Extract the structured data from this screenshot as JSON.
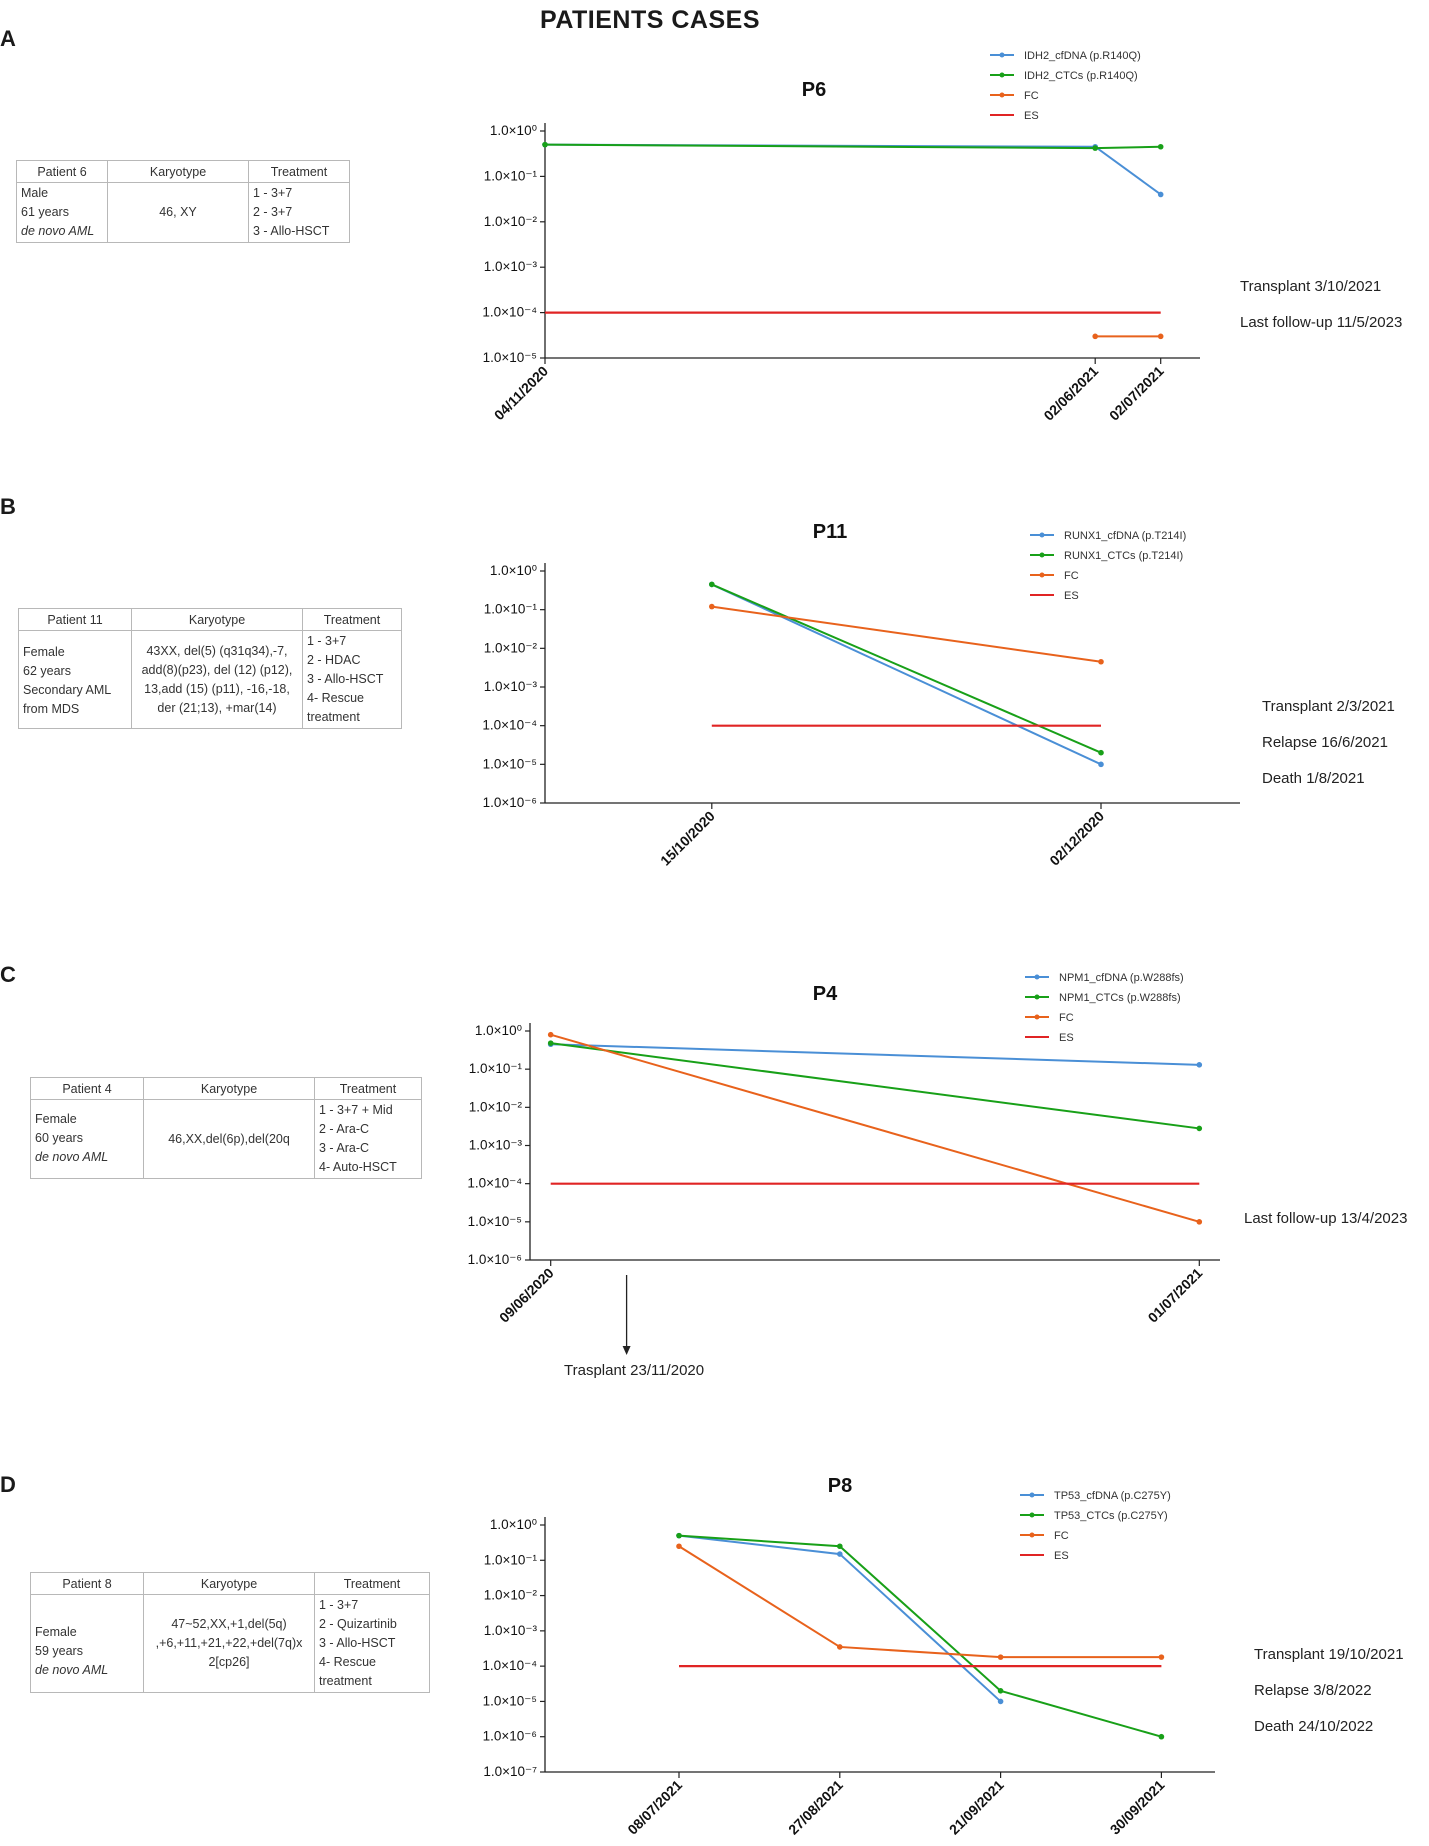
{
  "page_title": "PATIENTS CASES",
  "panels": [
    {
      "letter": "A",
      "patient_table": {
        "headers": [
          "Patient 6",
          "Karyotype",
          "Treatment"
        ],
        "patient_info": [
          "Male",
          "61 years",
          "de novo AML"
        ],
        "karyotype": "46, XY",
        "treatment": [
          "1 - 3+7",
          "2 - 3+7",
          "3 - Allo-HSCT"
        ]
      },
      "events": [
        "Transplant 3/10/2021",
        "Last follow-up 11/5/2023"
      ],
      "arrow_note": ""
    },
    {
      "letter": "B",
      "patient_table": {
        "headers": [
          "Patient 11",
          "Karyotype",
          "Treatment"
        ],
        "patient_info": [
          "Female",
          "62 years",
          "Secondary AML",
          "from MDS"
        ],
        "karyotype": "43XX, del(5) (q31q34),-7, add(8)(p23), del (12) (p12), 13,add (15) (p11), -16,-18, der (21;13), +mar(14)",
        "treatment": [
          "1 - 3+7",
          "2 - HDAC",
          "3 - Allo-HSCT",
          "4- Rescue",
          "treatment"
        ]
      },
      "events": [
        "Transplant 2/3/2021",
        "Relapse 16/6/2021",
        "Death 1/8/2021"
      ],
      "arrow_note": ""
    },
    {
      "letter": "C",
      "patient_table": {
        "headers": [
          "Patient 4",
          "Karyotype",
          "Treatment"
        ],
        "patient_info": [
          "Female",
          "60 years",
          "de novo AML"
        ],
        "karyotype": "46,XX,del(6p),del(20q",
        "treatment": [
          "1 - 3+7 + Mid",
          "2 - Ara-C",
          "3 - Ara-C",
          "4- Auto-HSCT"
        ]
      },
      "events": [
        "Last follow-up 13/4/2023"
      ],
      "arrow_note": "Trasplant 23/11/2020"
    },
    {
      "letter": "D",
      "patient_table": {
        "headers": [
          "Patient 8",
          "Karyotype",
          "Treatment"
        ],
        "patient_info": [
          "Female",
          "59 years",
          "de novo AML"
        ],
        "karyotype": "47~52,XX,+1,del(5q) ,+6,+11,+21,+22,+del(7q)x 2[cp26]",
        "treatment": [
          "1 - 3+7",
          "2 - Quizartinib",
          "3 - Allo-HSCT",
          "4- Rescue",
          "treatment"
        ]
      },
      "events": [
        "Transplant 19/10/2021",
        "Relapse 3/8/2022",
        "Death 24/10/2022"
      ],
      "arrow_note": ""
    }
  ],
  "chart_data": [
    {
      "type": "line",
      "title": "P6",
      "yscale": "log",
      "ylim_exponents": [
        -5,
        0
      ],
      "y_tick_labels": [
        "1.0×10⁰",
        "1.0×10⁻¹",
        "1.0×10⁻²",
        "1.0×10⁻³",
        "1.0×10⁻⁴",
        "1.0×10⁻⁵"
      ],
      "x": [
        "04/11/2020",
        "02/06/2021",
        "02/07/2021"
      ],
      "x_pos": [
        0,
        0.84,
        0.94
      ],
      "series": [
        {
          "name": "IDH2_cfDNA (p.R140Q)",
          "color": "#4a8fd6",
          "values": [
            0.5,
            0.45,
            0.04
          ]
        },
        {
          "name": "IDH2_CTCs (p.R140Q)",
          "color": "#18a018",
          "values": [
            0.5,
            0.42,
            0.45
          ]
        },
        {
          "name": "FC",
          "color": "#e8621c",
          "values": [
            null,
            3e-05,
            3e-05
          ]
        },
        {
          "name": "ES",
          "color": "#e02424",
          "values": [
            0.0001,
            0.0001,
            0.0001
          ],
          "markers": false
        }
      ]
    },
    {
      "type": "line",
      "title": "P11",
      "yscale": "log",
      "ylim_exponents": [
        -6,
        0
      ],
      "y_tick_labels": [
        "1.0×10⁰",
        "1.0×10⁻¹",
        "1.0×10⁻²",
        "1.0×10⁻³",
        "1.0×10⁻⁴",
        "1.0×10⁻⁵",
        "1.0×10⁻⁶"
      ],
      "x": [
        "15/10/2020",
        "02/12/2020"
      ],
      "x_pos": [
        0.24,
        0.8
      ],
      "series": [
        {
          "name": "RUNX1_cfDNA (p.T214I)",
          "color": "#4a8fd6",
          "values": [
            0.45,
            1e-05
          ]
        },
        {
          "name": "RUNX1_CTCs (p.T214I)",
          "color": "#18a018",
          "values": [
            0.45,
            2e-05
          ]
        },
        {
          "name": "FC",
          "color": "#e8621c",
          "values": [
            0.12,
            0.0045
          ]
        },
        {
          "name": "ES",
          "color": "#e02424",
          "values": [
            0.0001,
            0.0001
          ],
          "markers": false
        }
      ]
    },
    {
      "type": "line",
      "title": "P4",
      "yscale": "log",
      "ylim_exponents": [
        -6,
        0
      ],
      "y_tick_labels": [
        "1.0×10⁰",
        "1.0×10⁻¹",
        "1.0×10⁻²",
        "1.0×10⁻³",
        "1.0×10⁻⁴",
        "1.0×10⁻⁵",
        "1.0×10⁻⁶"
      ],
      "x": [
        "09/06/2020",
        "01/07/2021"
      ],
      "x_pos": [
        0.03,
        0.97
      ],
      "series": [
        {
          "name": "NPM1_cfDNA (p.W288fs)",
          "color": "#4a8fd6",
          "values": [
            0.45,
            0.13
          ]
        },
        {
          "name": "NPM1_CTCs (p.W288fs)",
          "color": "#18a018",
          "values": [
            0.48,
            0.0028
          ]
        },
        {
          "name": "FC",
          "color": "#e8621c",
          "values": [
            0.8,
            1e-05
          ]
        },
        {
          "name": "ES",
          "color": "#e02424",
          "values": [
            0.0001,
            0.0001
          ],
          "markers": false
        }
      ]
    },
    {
      "type": "line",
      "title": "P8",
      "yscale": "log",
      "ylim_exponents": [
        -7,
        0
      ],
      "y_tick_labels": [
        "1.0×10⁰",
        "1.0×10⁻¹",
        "1.0×10⁻²",
        "1.0×10⁻³",
        "1.0×10⁻⁴",
        "1.0×10⁻⁵",
        "1.0×10⁻⁶",
        "1.0×10⁻⁷"
      ],
      "x": [
        "08/07/2021",
        "27/08/2021",
        "21/09/2021",
        "30/09/2021"
      ],
      "x_pos": [
        0.2,
        0.44,
        0.68,
        0.92
      ],
      "series": [
        {
          "name": "TP53_cfDNA (p.C275Y)",
          "color": "#4a8fd6",
          "values": [
            0.5,
            0.15,
            1e-05,
            null
          ]
        },
        {
          "name": "TP53_CTCs (p.C275Y)",
          "color": "#18a018",
          "values": [
            0.5,
            0.25,
            2e-05,
            1e-06
          ]
        },
        {
          "name": "FC",
          "color": "#e8621c",
          "values": [
            0.25,
            0.00035,
            0.00018,
            0.00018
          ]
        },
        {
          "name": "ES",
          "color": "#e02424",
          "values": [
            0.0001,
            0.0001,
            0.0001,
            0.0001
          ],
          "markers": false
        }
      ]
    }
  ]
}
